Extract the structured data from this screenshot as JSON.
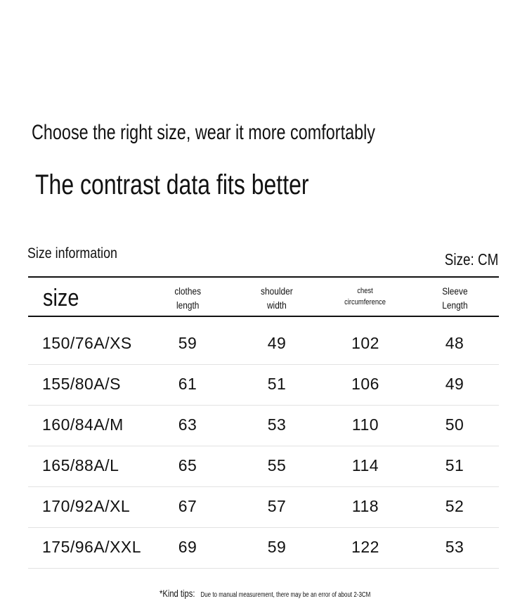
{
  "headline": "Choose the right size, wear it more comfortably",
  "subheadline": "The contrast data fits better",
  "section_title": "Size information",
  "unit_label": "Size: CM",
  "table": {
    "columns": [
      {
        "line1": "size",
        "line2": ""
      },
      {
        "line1": "clothes",
        "line2": "length"
      },
      {
        "line1": "shoulder",
        "line2": "width"
      },
      {
        "line1": "chest",
        "line2": "circumference"
      },
      {
        "line1": "Sleeve",
        "line2": "Length"
      }
    ],
    "rows": [
      [
        "150/76A/XS",
        "59",
        "49",
        "102",
        "48"
      ],
      [
        "155/80A/S",
        "61",
        "51",
        "106",
        "49"
      ],
      [
        "160/84A/M",
        "63",
        "53",
        "110",
        "50"
      ],
      [
        "165/88A/L",
        "65",
        "55",
        "114",
        "51"
      ],
      [
        "170/92A/XL",
        "67",
        "57",
        "118",
        "52"
      ],
      [
        "175/96A/XXL",
        "69",
        "59",
        "122",
        "53"
      ]
    ]
  },
  "tips": {
    "label": "*Kind tips:",
    "message": "Due to manual measurement, there may be an error of about 2-3CM"
  }
}
